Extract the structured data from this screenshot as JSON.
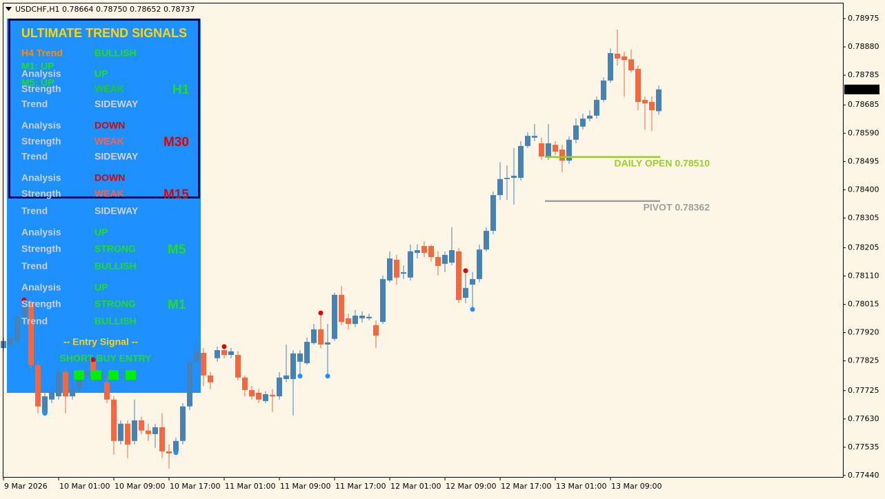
{
  "chart_data": {
    "type": "candlestick",
    "title": "USDCHF,H1  0.78664 0.78750 0.78652 0.78737",
    "categories": [
      "9 Mar 2026",
      null,
      null,
      null,
      null,
      null,
      null,
      null,
      "10 Mar 01:00",
      null,
      null,
      null,
      null,
      null,
      null,
      null,
      "10 Mar 09:00",
      null,
      null,
      null,
      null,
      null,
      null,
      null,
      "10 Mar 17:00",
      null,
      null,
      null,
      null,
      null,
      null,
      null,
      "11 Mar 01:00",
      null,
      null,
      null,
      null,
      null,
      null,
      null,
      "11 Mar 09:00",
      null,
      null,
      null,
      null,
      null,
      null,
      null,
      "11 Mar 17:00",
      null,
      null,
      null,
      null,
      null,
      null,
      null,
      "12 Mar 01:00",
      null,
      null,
      null,
      null,
      null,
      null,
      null,
      "12 Mar 09:00",
      null,
      null,
      null,
      null,
      null,
      null,
      null,
      "12 Mar 17:00",
      null,
      null,
      null,
      null,
      null,
      null,
      null,
      "13 Mar 01:00",
      null,
      null,
      null,
      null,
      null,
      null,
      null,
      "13 Mar 09:00",
      null,
      null,
      null,
      null,
      null,
      null,
      null
    ],
    "open": [
      0.77868,
      0.7788,
      0.77892,
      0.77973,
      0.78019,
      0.77811,
      0.77649,
      0.77695,
      0.77706,
      0.77787,
      0.77706,
      0.7773,
      0.77776,
      0.77822,
      0.77764,
      0.77753,
      0.77695,
      0.77556,
      0.77614,
      0.77556,
      0.77625,
      0.77591,
      0.77579,
      0.77602,
      0.77521,
      0.77521,
      0.77556,
      0.77672,
      0.77822,
      0.77852,
      0.77776,
      0.77834,
      0.77861,
      0.77845,
      0.77845,
      0.77769,
      0.77727,
      0.77718,
      0.7769,
      0.77711,
      0.77706,
      0.77764,
      0.77764,
      0.77822,
      0.77817,
      0.77885,
      0.77931,
      0.7788,
      0.77899,
      0.78047,
      0.77968,
      0.77949,
      0.77968,
      0.77968,
      0.77945,
      0.77956,
      0.78095,
      0.78165,
      0.78118,
      0.78105,
      0.78188,
      0.78211,
      0.78211,
      0.78174,
      0.78151,
      0.78155,
      0.78193,
      0.78037,
      0.78081,
      0.781,
      0.78199,
      0.78262,
      0.78382,
      0.78436,
      0.7844,
      0.7844,
      0.78547,
      0.78575,
      0.78556,
      0.78512,
      0.78551,
      0.78535,
      0.78498,
      0.78568,
      0.78612,
      0.78639,
      0.78649,
      0.78702,
      0.78767,
      0.78857,
      0.78848,
      0.78838,
      0.78806,
      0.78702,
      0.78695,
      0.78664
    ],
    "high": [
      0.77903,
      0.77915,
      0.77984,
      0.7803,
      0.7803,
      0.77822,
      0.77718,
      0.77741,
      0.77799,
      0.77799,
      0.77753,
      0.77799,
      0.77822,
      0.77829,
      0.77799,
      0.77776,
      0.77706,
      0.77625,
      0.77625,
      0.77695,
      0.77637,
      0.77614,
      0.77614,
      0.77649,
      0.77544,
      0.77567,
      0.77683,
      0.77834,
      0.77903,
      0.77868,
      0.77787,
      0.77873,
      0.77873,
      0.77868,
      0.77857,
      0.77776,
      0.77741,
      0.7773,
      0.77723,
      0.7773,
      0.77787,
      0.7788,
      0.77861,
      0.77861,
      0.77903,
      0.77949,
      0.77986,
      0.77949,
      0.78054,
      0.78077,
      0.77984,
      0.77996,
      0.77991,
      0.77984,
      0.77961,
      0.78112,
      0.78193,
      0.78181,
      0.78146,
      0.78216,
      0.78216,
      0.78227,
      0.78216,
      0.78193,
      0.78193,
      0.78274,
      0.78204,
      0.78128,
      0.78123,
      0.78216,
      0.78274,
      0.78394,
      0.78493,
      0.78482,
      0.7854,
      0.78563,
      0.78593,
      0.78621,
      0.78575,
      0.78621,
      0.78563,
      0.78551,
      0.78579,
      0.78639,
      0.78656,
      0.78667,
      0.78713,
      0.78778,
      0.78875,
      0.78938,
      0.78864,
      0.78871,
      0.78818,
      0.78713,
      0.78713,
      0.7875
    ],
    "low": [
      0.77857,
      0.77868,
      0.7788,
      0.77961,
      0.77799,
      0.77649,
      0.77642,
      0.77683,
      0.77695,
      0.77649,
      0.77695,
      0.77718,
      0.77764,
      0.77753,
      0.77741,
      0.77683,
      0.7751,
      0.77544,
      0.77498,
      0.77544,
      0.77579,
      0.77556,
      0.77533,
      0.77498,
      0.77463,
      0.7751,
      0.77544,
      0.7766,
      0.77811,
      0.77741,
      0.7773,
      0.77822,
      0.77834,
      0.77834,
      0.7776,
      0.77706,
      0.77695,
      0.77683,
      0.77683,
      0.77653,
      0.77695,
      0.77753,
      0.77642,
      0.77774,
      0.77811,
      0.7788,
      0.77868,
      0.77774,
      0.77892,
      0.77945,
      0.77931,
      0.77938,
      0.77954,
      0.77961,
      0.77868,
      0.77949,
      0.78089,
      0.78081,
      0.781,
      0.78095,
      0.78169,
      0.78174,
      0.78158,
      0.78112,
      0.78123,
      0.78146,
      0.78019,
      0.78019,
      0.77998,
      0.78089,
      0.78193,
      0.7825,
      0.78366,
      0.78366,
      0.7835,
      0.78431,
      0.7854,
      0.78563,
      0.785,
      0.785,
      0.78517,
      0.78459,
      0.78487,
      0.78556,
      0.78602,
      0.7863,
      0.78639,
      0.78695,
      0.7876,
      0.78818,
      0.78713,
      0.78794,
      0.78667,
      0.78602,
      0.78598,
      0.78652
    ],
    "close": [
      0.77892,
      0.77903,
      0.77973,
      0.78019,
      0.77811,
      0.77672,
      0.77706,
      0.77718,
      0.77787,
      0.77706,
      0.7773,
      0.77787,
      0.77787,
      0.77776,
      0.77787,
      0.77695,
      0.77556,
      0.77614,
      0.77544,
      0.77625,
      0.77591,
      0.77579,
      0.77602,
      0.77521,
      0.77514,
      0.77556,
      0.77672,
      0.77822,
      0.77857,
      0.77776,
      0.77753,
      0.77861,
      0.77845,
      0.77857,
      0.77769,
      0.77727,
      0.77706,
      0.77695,
      0.77713,
      0.77706,
      0.77769,
      0.77776,
      0.7785,
      0.7785,
      0.77889,
      0.77931,
      0.7788,
      0.77887,
      0.78047,
      0.77956,
      0.77949,
      0.77977,
      0.77977,
      0.77973,
      0.7791,
      0.781,
      0.78169,
      0.78105,
      0.78123,
      0.78193,
      0.78197,
      0.78188,
      0.78174,
      0.78144,
      0.78181,
      0.78197,
      0.7803,
      0.7807,
      0.781,
      0.78199,
      0.78262,
      0.78382,
      0.78436,
      0.7844,
      0.78447,
      0.78547,
      0.78581,
      0.78581,
      0.78512,
      0.78556,
      0.78528,
      0.78498,
      0.78568,
      0.78616,
      0.78639,
      0.78649,
      0.78702,
      0.78767,
      0.78859,
      0.78841,
      0.78836,
      0.78801,
      0.78695,
      0.7869,
      0.78667,
      0.78737
    ],
    "up_color": "#4682b4",
    "down_color": "#f4673f",
    "ylim": [
      0.77435,
      0.79026
    ],
    "yticks": [
      0.78975,
      {
        "value": 0.7888,
        "label": "0.78880"
      },
      0.78785,
      0.78685,
      {
        "value": 0.7859,
        "label": "0.78590"
      },
      0.78495,
      {
        "value": 0.784,
        "label": "0.78400"
      },
      0.78305,
      0.78205,
      {
        "value": 0.7811,
        "label": "0.78110"
      },
      0.78015,
      {
        "value": 0.7792,
        "label": "0.77920"
      },
      0.77825,
      0.77725,
      {
        "value": 0.7763,
        "label": "0.77630"
      },
      0.77535,
      {
        "value": 0.7744,
        "label": "0.77440"
      }
    ],
    "last_price": 0.78737,
    "signals": [
      {
        "x_index": 3,
        "value": 0.7803,
        "color": "#e00000"
      },
      {
        "x_index": 13,
        "value": 0.77829,
        "color": "#e00000"
      },
      {
        "x_index": 32,
        "value": 0.77873,
        "color": "#e00000"
      },
      {
        "x_index": 46,
        "value": 0.77986,
        "color": "#e00000"
      },
      {
        "x_index": 67,
        "value": 0.78128,
        "color": "#e00000"
      },
      {
        "x_index": 6,
        "value": 0.77649,
        "color": "#1e90ff"
      },
      {
        "x_index": 25,
        "value": 0.77517,
        "color": "#1e90ff"
      },
      {
        "x_index": 43,
        "value": 0.77774,
        "color": "#1e90ff"
      },
      {
        "x_index": 47,
        "value": 0.77774,
        "color": "#1e90ff"
      },
      {
        "x_index": 68,
        "value": 0.77998,
        "color": "#1e90ff"
      }
    ],
    "levels": [
      {
        "label": "DAILY OPEN 0.78510",
        "value": 0.7851,
        "color": "#9acd32",
        "x_index": [
          79,
          95
        ]
      },
      {
        "label": "PIVOT 0.78362",
        "value": 0.78362,
        "color": "#a0a0a0",
        "x_index": [
          79,
          95
        ]
      }
    ]
  },
  "indicator_panel": {
    "title": "ULTIMATE TREND SIGNALS",
    "h4": {
      "label": "H4 Trend",
      "value": "BULLISH",
      "label_color": "#ff8c00",
      "value_color": "#22dd22"
    },
    "notes": [
      "M1: UP",
      "M5: UP"
    ],
    "timeframes": [
      {
        "name": "H1",
        "color": "#22dd22",
        "rows": [
          {
            "label": "Analysis",
            "value": "UP",
            "color": "#22dd22"
          },
          {
            "label": "Strength",
            "value": "WEAK",
            "color": "#22cc22"
          },
          {
            "label": "Trend",
            "value": "SIDEWAY",
            "color": "#d3d3d3"
          }
        ]
      },
      {
        "name": "M30",
        "color": "#e00000",
        "rows": [
          {
            "label": "Analysis",
            "value": "DOWN",
            "color": "#e00000"
          },
          {
            "label": "Strength",
            "value": "WEAK",
            "color": "#ff6347"
          },
          {
            "label": "Trend",
            "value": "SIDEWAY",
            "color": "#d3d3d3"
          }
        ]
      },
      {
        "name": "M15",
        "color": "#e00000",
        "rows": [
          {
            "label": "Analysis",
            "value": "DOWN",
            "color": "#e00000"
          },
          {
            "label": "Strength",
            "value": "WEAK",
            "color": "#ff6347"
          },
          {
            "label": "Trend",
            "value": "SIDEWAY",
            "color": "#d3d3d3"
          }
        ]
      },
      {
        "name": "M5",
        "color": "#22dd22",
        "rows": [
          {
            "label": "Analysis",
            "value": "UP",
            "color": "#22dd22"
          },
          {
            "label": "Strength",
            "value": "STRONG",
            "color": "#22dd22"
          },
          {
            "label": "Trend",
            "value": "BULLISH",
            "color": "#22dd22"
          }
        ]
      },
      {
        "name": "M1",
        "color": "#22dd22",
        "rows": [
          {
            "label": "Analysis",
            "value": "UP",
            "color": "#22dd22"
          },
          {
            "label": "Strength",
            "value": "STRONG",
            "color": "#22dd22"
          },
          {
            "label": "Trend",
            "value": "BULLISH",
            "color": "#22dd22"
          }
        ]
      }
    ],
    "entry_title": "-- Entry Signal --",
    "entry": "SHORT BUY ENTRY"
  }
}
